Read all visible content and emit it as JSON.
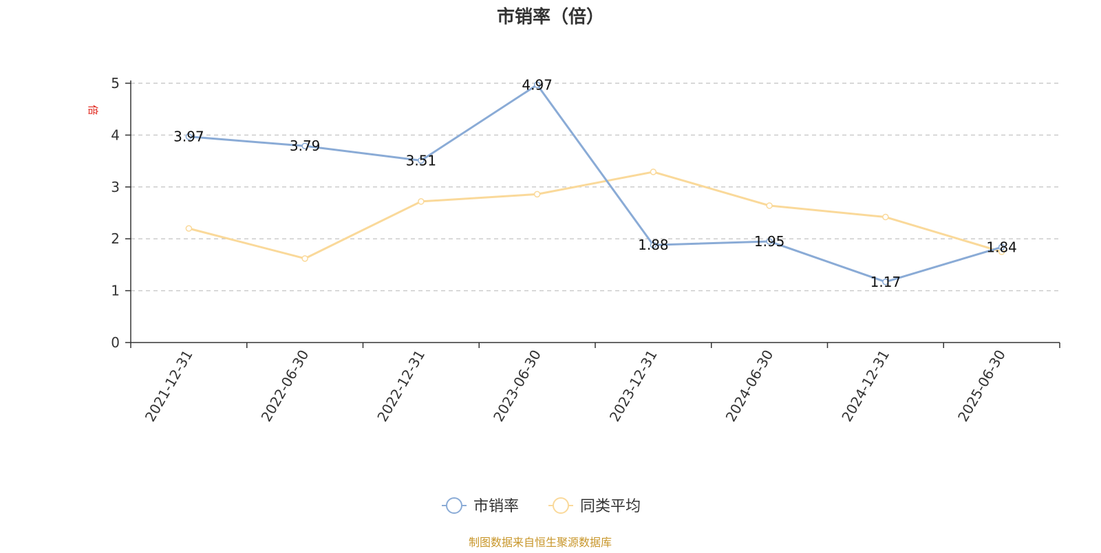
{
  "chart_data": {
    "type": "line",
    "title": "市销率（倍）",
    "ylabel": "倍",
    "xlabel": "",
    "ylim": [
      0,
      5
    ],
    "yticks": [
      "0",
      "1",
      "2",
      "3",
      "4",
      "5"
    ],
    "categories": [
      "2021-12-31",
      "2022-06-30",
      "2022-12-31",
      "2023-06-30",
      "2023-12-31",
      "2024-06-30",
      "2024-12-31",
      "2025-06-30"
    ],
    "series": [
      {
        "name": "市销率",
        "color": "#8aabd6",
        "values": [
          3.97,
          3.79,
          3.51,
          4.97,
          1.88,
          1.95,
          1.17,
          1.84
        ],
        "labels": [
          "3.97",
          "3.79",
          "3.51",
          "4.97",
          "1.88",
          "1.95",
          "1.17",
          "1.84"
        ]
      },
      {
        "name": "同类平均",
        "color": "#fad99a",
        "values": [
          2.2,
          1.62,
          2.72,
          2.86,
          3.29,
          2.64,
          2.42,
          1.75
        ]
      }
    ],
    "grid": "horizontal dashed",
    "legend_position": "bottom-center"
  },
  "source_text": "制图数据来自恒生聚源数据库"
}
